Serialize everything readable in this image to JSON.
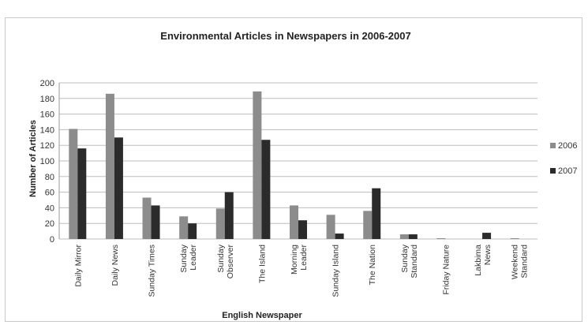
{
  "chart_data": {
    "type": "bar",
    "title": "Environmental Articles in Newspapers in 2006-2007",
    "xlabel": "English Newspaper",
    "ylabel": "Number of Articles",
    "ylim": [
      0,
      200
    ],
    "yticks": [
      0,
      20,
      40,
      60,
      80,
      100,
      120,
      140,
      160,
      180,
      200
    ],
    "grid": true,
    "legend_position": "right",
    "categories": [
      [
        "Daily Mirror"
      ],
      [
        "Daily News"
      ],
      [
        "Sunday Times"
      ],
      [
        "Sunday",
        "Leader"
      ],
      [
        "Sunday",
        "Observer"
      ],
      [
        "The Island"
      ],
      [
        "Morning",
        "Leader"
      ],
      [
        "Sunday Island"
      ],
      [
        "The Nation"
      ],
      [
        "Sunday",
        "Standard"
      ],
      [
        "Friday Nature"
      ],
      [
        "Lakbima",
        "News"
      ],
      [
        "Weekend",
        "Standard"
      ]
    ],
    "series": [
      {
        "name": "2006",
        "color": "#8c8c8c",
        "values": [
          141,
          186,
          53,
          29,
          39,
          189,
          43,
          31,
          36,
          6,
          1,
          0,
          1
        ]
      },
      {
        "name": "2007",
        "color": "#2b2b2b",
        "values": [
          116,
          130,
          43,
          20,
          60,
          127,
          24,
          7,
          65,
          6,
          0,
          8,
          0
        ]
      }
    ]
  }
}
